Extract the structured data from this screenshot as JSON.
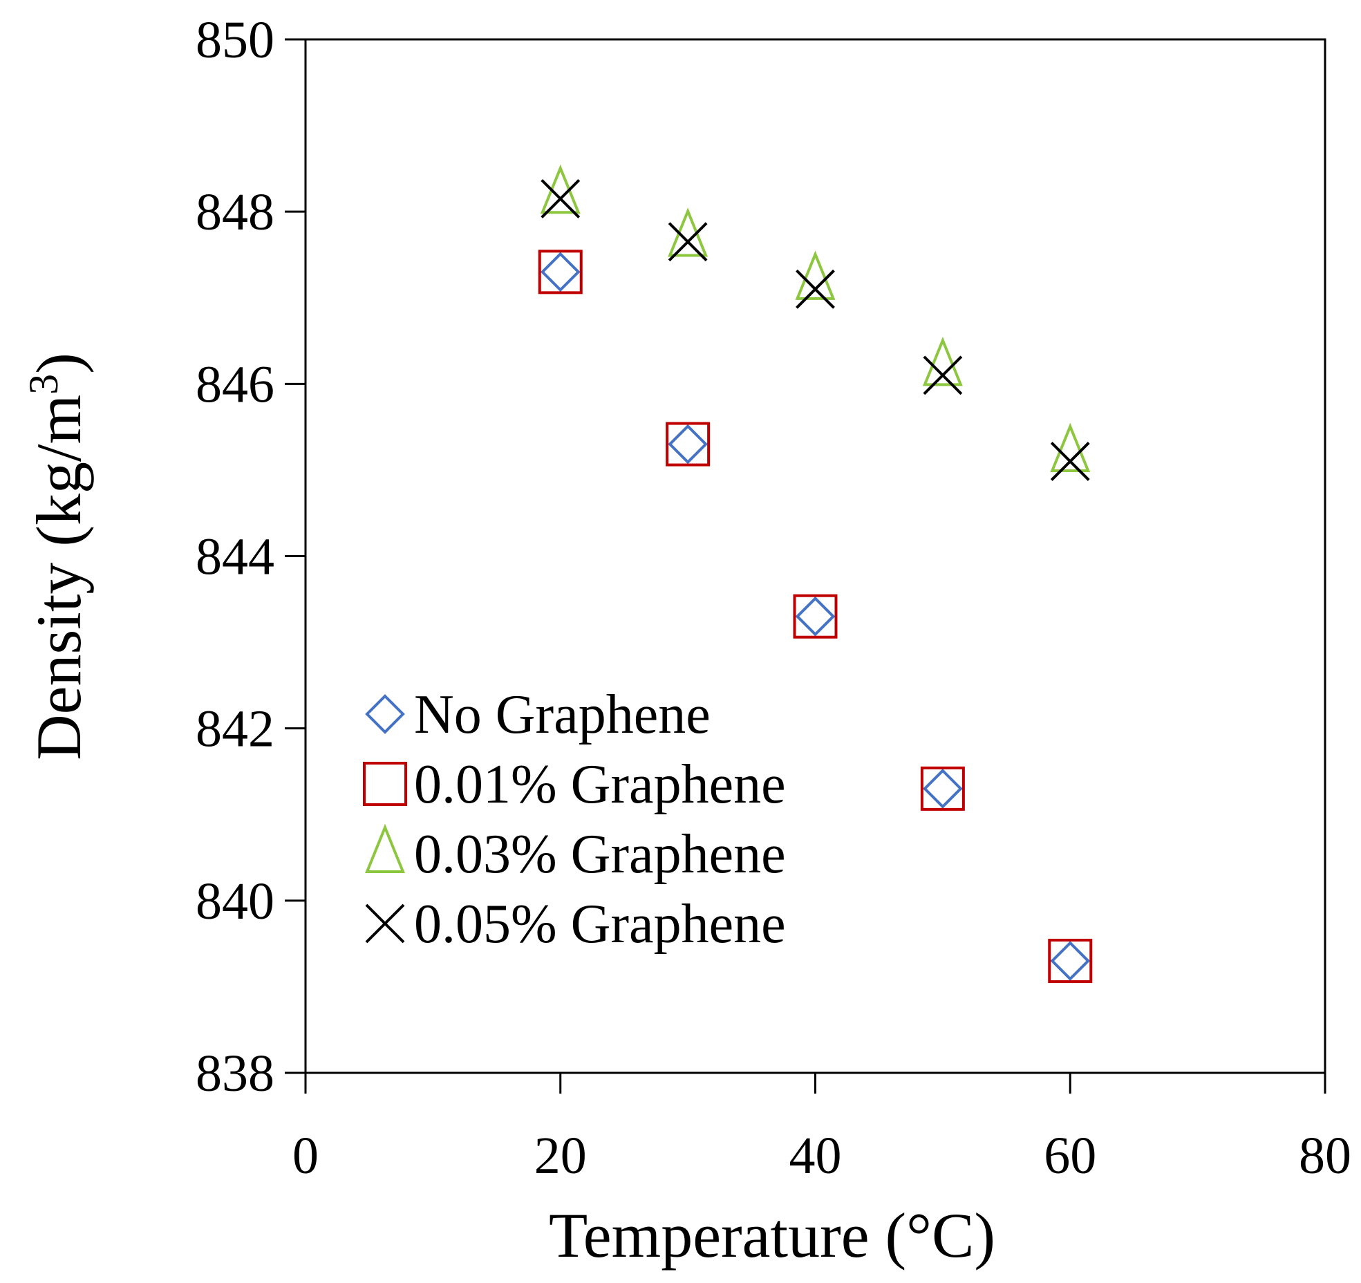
{
  "chart_data": {
    "type": "scatter",
    "xlabel": "Temperature (°C)",
    "ylabel": {
      "prefix": "Density (kg/m",
      "superscript": "3",
      "suffix": ")"
    },
    "xlim": [
      0,
      80
    ],
    "ylim": [
      838,
      850
    ],
    "xticks": [
      0,
      20,
      40,
      60,
      80
    ],
    "yticks": [
      838,
      840,
      842,
      844,
      846,
      848,
      850
    ],
    "grid": false,
    "legend_position": "lower-left",
    "series": [
      {
        "name": "No Graphene",
        "marker": "diamond",
        "color": "#4472C4",
        "x": [
          20,
          30,
          40,
          50,
          60
        ],
        "y": [
          847.3,
          845.3,
          843.3,
          841.3,
          839.3
        ]
      },
      {
        "name": "0.01% Graphene",
        "marker": "square",
        "color": "#C00000",
        "x": [
          20,
          30,
          40,
          50,
          60
        ],
        "y": [
          847.3,
          845.3,
          843.3,
          841.3,
          839.3
        ]
      },
      {
        "name": "0.03% Graphene",
        "marker": "triangle",
        "color": "#8DC63F",
        "x": [
          20,
          30,
          40,
          50,
          60
        ],
        "y": [
          848.2,
          847.7,
          847.2,
          846.2,
          845.2
        ]
      },
      {
        "name": "0.05% Graphene",
        "marker": "x",
        "color": "#000000",
        "x": [
          20,
          30,
          40,
          50,
          60
        ],
        "y": [
          848.15,
          847.65,
          847.1,
          846.1,
          845.1
        ]
      }
    ]
  }
}
